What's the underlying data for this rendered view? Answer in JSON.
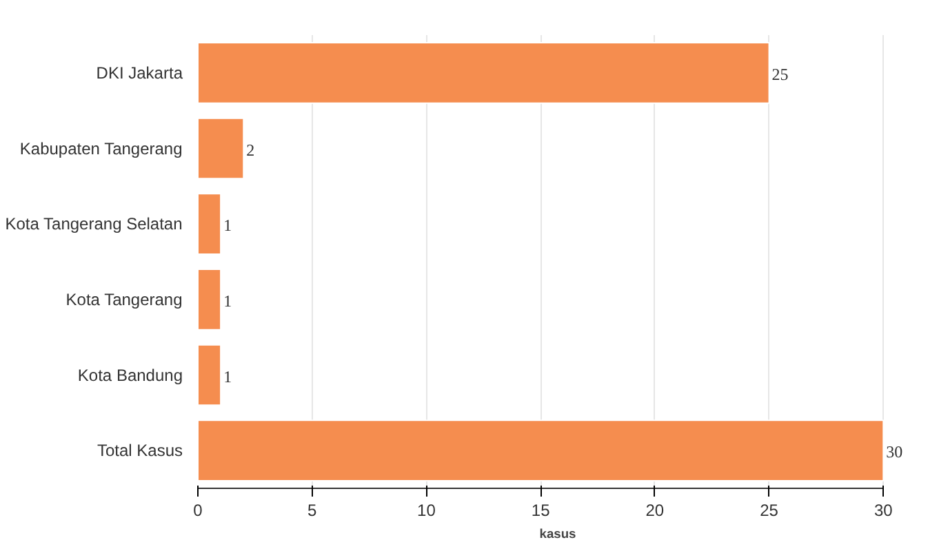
{
  "chart_data": {
    "type": "bar",
    "orientation": "horizontal",
    "xlabel": "kasus",
    "categories": [
      "DKI Jakarta",
      "Kabupaten Tangerang",
      "Kota Tangerang Selatan",
      "Kota Tangerang",
      "Kota Bandung",
      "Total Kasus"
    ],
    "values": [
      25,
      2,
      1,
      1,
      1,
      30
    ],
    "color": "#f58d4f",
    "xlim": [
      0,
      30
    ],
    "xticks": [
      0,
      5,
      10,
      15,
      20,
      25,
      30
    ],
    "grid": "x",
    "data_labels": true
  }
}
